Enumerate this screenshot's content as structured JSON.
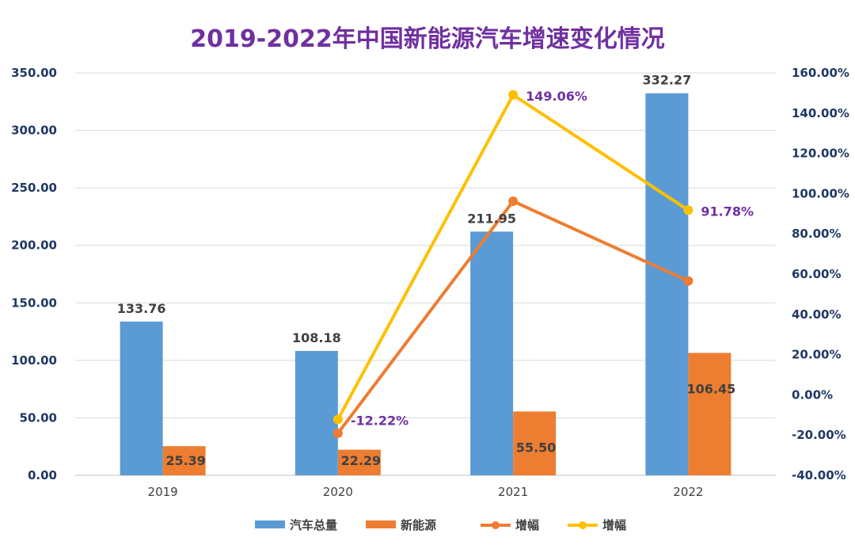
{
  "chart_data": {
    "type": "bar",
    "title": "2019-2022年中国新能源汽车增速变化情况",
    "categories": [
      "2019",
      "2020",
      "2021",
      "2022"
    ],
    "y_left": {
      "min": 0,
      "max": 350,
      "step": 50,
      "ticks": [
        "0.00",
        "50.00",
        "100.00",
        "150.00",
        "200.00",
        "250.00",
        "300.00",
        "350.00"
      ]
    },
    "y_right": {
      "min": -40,
      "max": 160,
      "step": 20,
      "ticks": [
        "-40.00%",
        "-20.00%",
        "0.00%",
        "20.00%",
        "40.00%",
        "60.00%",
        "80.00%",
        "100.00%",
        "120.00%",
        "140.00%",
        "160.00%"
      ]
    },
    "series": [
      {
        "name": "汽车总量",
        "kind": "bar",
        "axis": "left",
        "color": "#5B9BD5",
        "values": [
          133.76,
          108.18,
          211.95,
          332.27
        ],
        "labels": [
          "133.76",
          "108.18",
          "211.95",
          "332.27"
        ]
      },
      {
        "name": "新能源",
        "kind": "bar",
        "axis": "left",
        "color": "#ED7D31",
        "values": [
          25.39,
          22.29,
          55.5,
          106.45
        ],
        "labels": [
          "25.39",
          "22.29",
          "55.50",
          "106.45"
        ]
      },
      {
        "name": "增幅",
        "kind": "line",
        "axis": "right",
        "color": "#ED7D31",
        "values": [
          null,
          -19.1,
          96.2,
          56.6
        ],
        "labels": []
      },
      {
        "name": "增幅",
        "kind": "line",
        "axis": "right",
        "color": "#FFC000",
        "values": [
          null,
          -12.22,
          149.06,
          91.78
        ],
        "labels": [
          "",
          "-12.22%",
          "149.06%",
          "91.78%"
        ]
      }
    ],
    "legend": "bottom"
  },
  "colors": {
    "title": "#7030A0",
    "percent_label": "#7030A0",
    "grid": "#D9D9D9"
  }
}
